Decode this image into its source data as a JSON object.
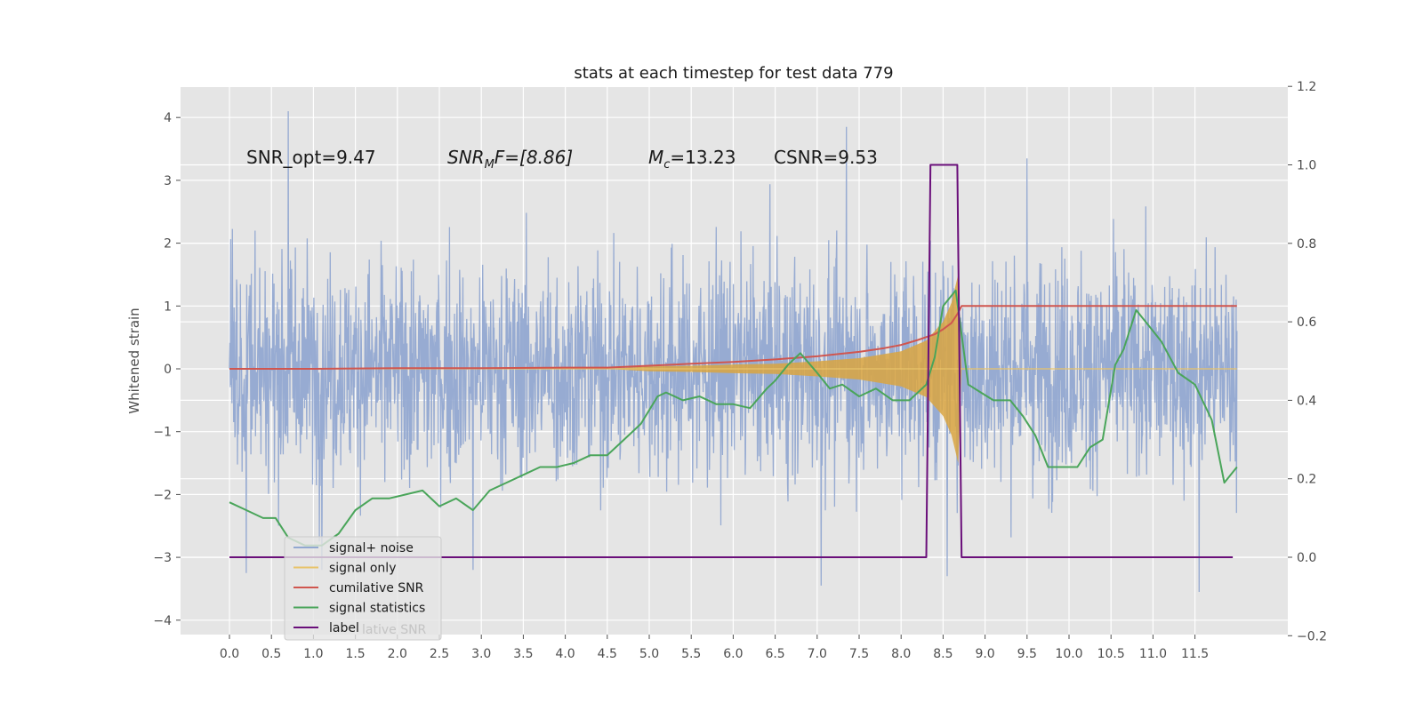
{
  "chart_data": {
    "type": "line",
    "title": "stats at each timestep for test data 779",
    "ylabel": "Whitened strain",
    "y2label": "",
    "xlim": [
      -0.5,
      12.7
    ],
    "ylim": [
      -4.2,
      4.5
    ],
    "y2lim": [
      -0.2,
      1.2
    ],
    "x_ticks": [
      0.0,
      0.5,
      1.0,
      1.5,
      2.0,
      2.5,
      3.0,
      3.5,
      4.0,
      4.5,
      5.0,
      5.5,
      6.0,
      6.5,
      7.0,
      7.5,
      8.0,
      8.5,
      9.0,
      9.5,
      10.0,
      10.5,
      11.0,
      11.5
    ],
    "x_tick_labels": [
      "0.0",
      "0.5",
      "1.0",
      "1.5",
      "2.0",
      "2.5",
      "3.0",
      "3.5",
      "4.0",
      "4.5",
      "5.0",
      "5.5",
      "6.0",
      "6.5",
      "7.0",
      "7.5",
      "8.0",
      "8.5",
      "9.0",
      "9.5",
      "10.0",
      "10.5",
      "11.0",
      "11.5"
    ],
    "y_ticks": [
      4,
      3,
      2,
      1,
      0,
      -1,
      -2,
      -3,
      -4
    ],
    "y_tick_labels": [
      "4",
      "3",
      "2",
      "1",
      "0",
      "−1",
      "−2",
      "−3",
      "−4"
    ],
    "y2_ticks": [
      1.2,
      1.0,
      0.8,
      0.6,
      0.4,
      0.2,
      0.0,
      -0.2
    ],
    "y2_tick_labels": [
      "1.2",
      "1.0",
      "0.8",
      "0.6",
      "0.4",
      "0.2",
      "0.0",
      "−0.2"
    ],
    "grid": true,
    "legend_position": "lower-left",
    "legend": [
      {
        "label": "signal+ noise",
        "color": "#92a8d1"
      },
      {
        "label": "signal only",
        "color": "#e8c36a"
      },
      {
        "label": "cumilative SNR",
        "color": "#d0564f"
      },
      {
        "label": "signal statistics",
        "color": "#4aa55a"
      },
      {
        "label": "label",
        "color": "#6a0f7a"
      }
    ],
    "legend_hidden_text": "lative SNR",
    "annotations": {
      "snr_opt": "SNR_opt=9.47",
      "snr_mf_base": "SNR",
      "snr_mf_sub": "M",
      "snr_mf_tail": "F=[8.86]",
      "mc_base": "M",
      "mc_sub": "c",
      "mc_tail": "=13.23",
      "csnr": "CSNR=9.53"
    },
    "series": [
      {
        "name": "signal+ noise",
        "axis": "left",
        "color": "#92a8d1",
        "note_generation": "random",
        "x_range": [
          0.0,
          12.0
        ],
        "amplitude": 0.9,
        "spikes": [
          [
            0.7,
            4.1
          ],
          [
            7.35,
            3.85
          ],
          [
            9.5,
            3.35
          ],
          [
            6.0,
            1.35
          ],
          [
            11.55,
            -3.55
          ],
          [
            7.05,
            -3.45
          ],
          [
            8.55,
            -3.3
          ],
          [
            1.1,
            -3.2
          ],
          [
            0.2,
            -3.25
          ],
          [
            2.9,
            -3.2
          ]
        ]
      },
      {
        "name": "signal only",
        "axis": "left",
        "color": "#e8c36a",
        "envelope": [
          [
            4.5,
            0.0
          ],
          [
            5.0,
            0.04
          ],
          [
            5.5,
            0.05
          ],
          [
            6.0,
            0.07
          ],
          [
            6.5,
            0.08
          ],
          [
            7.0,
            0.12
          ],
          [
            7.5,
            0.17
          ],
          [
            8.0,
            0.28
          ],
          [
            8.3,
            0.45
          ],
          [
            8.5,
            0.75
          ],
          [
            8.6,
            1.05
          ],
          [
            8.68,
            1.5
          ],
          [
            8.72,
            0.0
          ],
          [
            12.0,
            0.0
          ]
        ]
      },
      {
        "name": "cumilative SNR",
        "axis": "left",
        "color": "#d0564f",
        "x": [
          0.0,
          1.0,
          2.0,
          3.0,
          4.0,
          4.5,
          5.0,
          5.5,
          6.0,
          6.5,
          7.0,
          7.5,
          7.8,
          8.0,
          8.2,
          8.4,
          8.5,
          8.6,
          8.67,
          8.72,
          12.0
        ],
        "y": [
          0.0,
          0.0,
          0.01,
          0.01,
          0.02,
          0.02,
          0.05,
          0.08,
          0.11,
          0.15,
          0.2,
          0.27,
          0.33,
          0.38,
          0.46,
          0.55,
          0.63,
          0.73,
          0.87,
          1.0,
          1.0
        ]
      },
      {
        "name": "signal statistics",
        "axis": "right",
        "color": "#4aa55a",
        "x": [
          0.0,
          0.2,
          0.4,
          0.55,
          0.7,
          0.9,
          1.1,
          1.3,
          1.5,
          1.7,
          1.9,
          2.1,
          2.3,
          2.5,
          2.7,
          2.9,
          3.1,
          3.3,
          3.5,
          3.7,
          3.9,
          4.1,
          4.3,
          4.5,
          4.7,
          4.9,
          5.1,
          5.2,
          5.4,
          5.6,
          5.8,
          6.0,
          6.2,
          6.4,
          6.5,
          6.65,
          6.8,
          7.0,
          7.15,
          7.3,
          7.5,
          7.7,
          7.9,
          8.1,
          8.3,
          8.4,
          8.5,
          8.65,
          8.8,
          8.95,
          9.1,
          9.3,
          9.45,
          9.6,
          9.75,
          9.9,
          10.1,
          10.25,
          10.4,
          10.55,
          10.65,
          10.8,
          10.95,
          11.1,
          11.3,
          11.5,
          11.7,
          11.85,
          12.0
        ],
        "y": [
          0.14,
          0.12,
          0.1,
          0.1,
          0.05,
          0.03,
          0.03,
          0.06,
          0.12,
          0.15,
          0.15,
          0.16,
          0.17,
          0.13,
          0.15,
          0.12,
          0.17,
          0.19,
          0.21,
          0.23,
          0.23,
          0.24,
          0.26,
          0.26,
          0.3,
          0.34,
          0.41,
          0.42,
          0.4,
          0.41,
          0.39,
          0.39,
          0.38,
          0.43,
          0.45,
          0.49,
          0.52,
          0.47,
          0.43,
          0.44,
          0.41,
          0.43,
          0.4,
          0.4,
          0.44,
          0.51,
          0.64,
          0.68,
          0.44,
          0.42,
          0.4,
          0.4,
          0.36,
          0.31,
          0.23,
          0.23,
          0.23,
          0.28,
          0.3,
          0.49,
          0.53,
          0.63,
          0.59,
          0.55,
          0.47,
          0.44,
          0.35,
          0.19,
          0.23
        ]
      },
      {
        "name": "label",
        "axis": "right",
        "color": "#6a0f7a",
        "x": [
          0.0,
          8.3,
          8.35,
          8.67,
          8.72,
          11.95
        ],
        "y": [
          0.0,
          0.0,
          1.0,
          1.0,
          0.0,
          0.0
        ]
      }
    ]
  }
}
